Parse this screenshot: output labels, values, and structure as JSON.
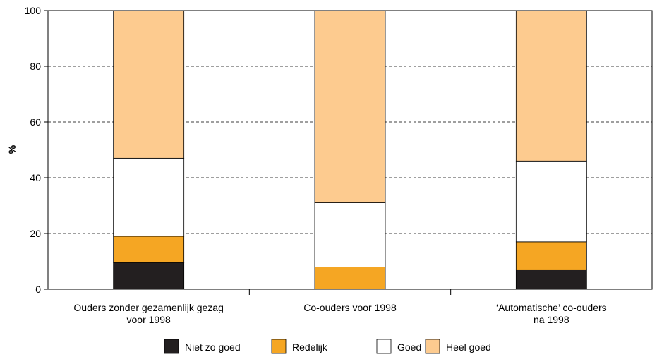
{
  "chart_data": {
    "type": "bar",
    "stacked": true,
    "ylabel": "%",
    "ylim": [
      0,
      100
    ],
    "yticks": [
      0,
      20,
      40,
      60,
      80,
      100
    ],
    "grid": "horizontal-dashed",
    "legend_position": "bottom",
    "categories": [
      [
        "Ouders zonder gezamenlijk gezag",
        "voor 1998"
      ],
      [
        "Co-ouders voor 1998"
      ],
      [
        "‘Automatische’ co-ouders",
        "na 1998"
      ]
    ],
    "series": [
      {
        "name": "Niet zo goed",
        "color": "#231f20",
        "values": [
          9.5,
          0,
          7
        ]
      },
      {
        "name": "Redelijk",
        "color": "#f5a623",
        "values": [
          9.5,
          8,
          10
        ]
      },
      {
        "name": "Goed",
        "color": "#ffffff",
        "values": [
          28,
          23,
          29
        ]
      },
      {
        "name": "Heel goed",
        "color": "#fdcb8f",
        "values": [
          53,
          69,
          54
        ]
      }
    ]
  }
}
